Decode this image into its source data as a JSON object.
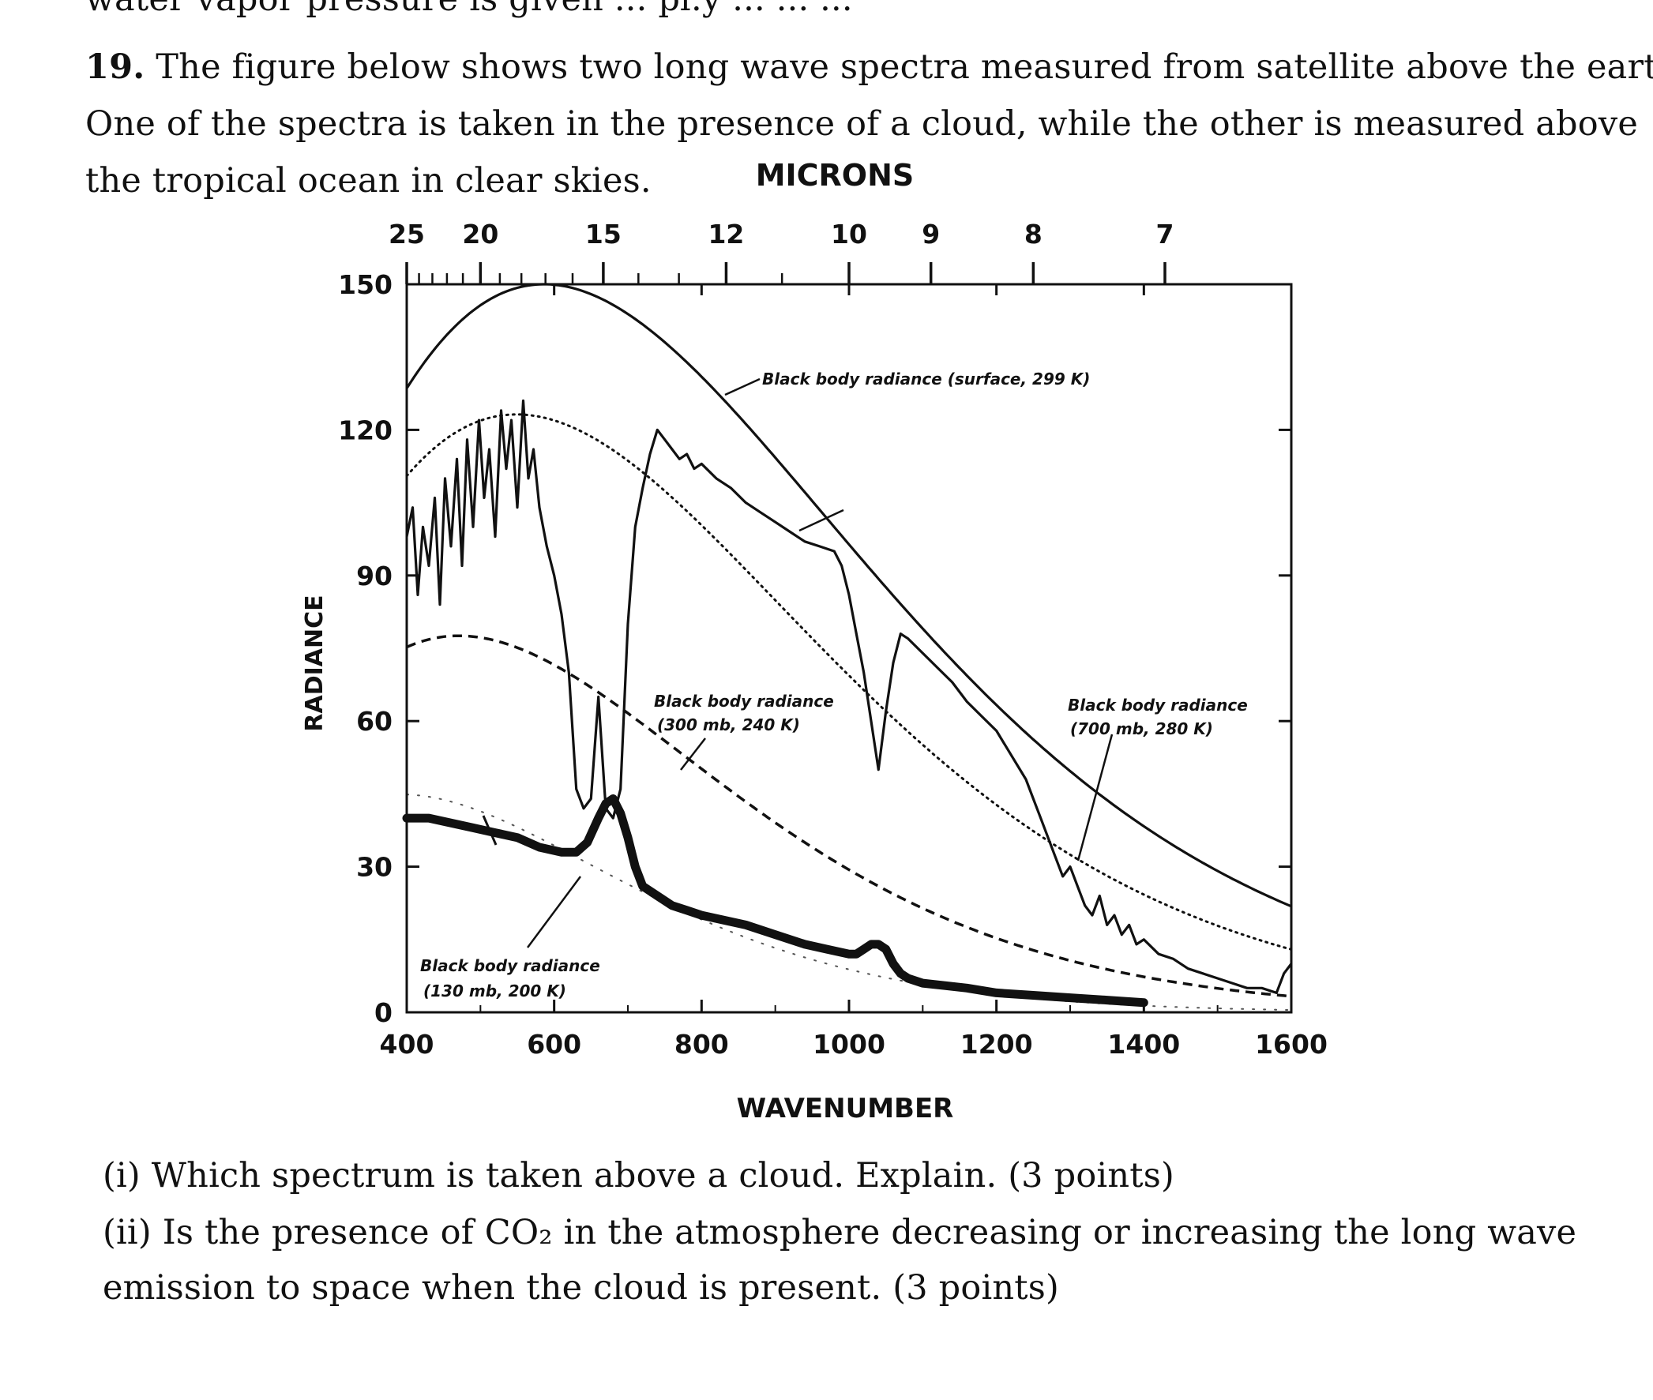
{
  "page": {
    "cut_top_text": "water vapor pressure is given ... pl.y ... ... ...",
    "question_number": "19.",
    "question_line1": "The figure below shows two long wave spectra measured from satellite above the earth.",
    "question_line2": "One of the spectra is taken in the presence of a cloud, while the other is measured above",
    "question_line3": "the tropical ocean in clear skies.",
    "sub_i": "(i) Which spectrum is taken above a cloud. Explain. (3 points)",
    "sub_ii_line1": "(ii) Is the presence of CO₂ in the atmosphere decreasing or increasing the long wave",
    "sub_ii_line2": "emission to space when the cloud is present. (3 points)"
  },
  "chart_data": {
    "type": "line",
    "xlabel": "WAVENUMBER",
    "ylabel": "RADIANCE",
    "top_axis_label": "MICRONS",
    "xlim": [
      400,
      1600
    ],
    "ylim": [
      0,
      150
    ],
    "x_ticks": [
      "400",
      "600",
      "800",
      "1000",
      "1200",
      "1400",
      "1600"
    ],
    "y_ticks": [
      "0",
      "30",
      "60",
      "90",
      "120",
      "150"
    ],
    "top_ticks": [
      {
        "label": "25",
        "micron": 25
      },
      {
        "label": "20",
        "micron": 20
      },
      {
        "label": "15",
        "micron": 15
      },
      {
        "label": "12",
        "micron": 12
      },
      {
        "label": "10",
        "micron": 10
      },
      {
        "label": "9",
        "micron": 9
      },
      {
        "label": "8",
        "micron": 8
      },
      {
        "label": "7",
        "micron": 7
      }
    ],
    "annotations": [
      {
        "text": "Black body radiance (surface, 299 K)"
      },
      {
        "text_line1": "Black body radiance",
        "text_line2": "(300 mb, 240 K)"
      },
      {
        "text_line1": "Black body radiance",
        "text_line2": "(700 mb, 280 K)"
      },
      {
        "text_line1": "Black body radiance",
        "text_line2": "(130 mb, 200 K)"
      }
    ],
    "series": [
      {
        "style": "solid-thin",
        "temperature_K": 299
      },
      {
        "style": "dotted",
        "temperature_K": 280
      },
      {
        "style": "dashed",
        "temperature_K": 240
      },
      {
        "style": "faint-dotted",
        "temperature_K": 200
      },
      {
        "style": "jagged-clear-sky",
        "x": [
          400,
          408,
          415,
          422,
          430,
          438,
          445,
          452,
          460,
          468,
          475,
          482,
          490,
          498,
          505,
          512,
          520,
          528,
          535,
          542,
          550,
          558,
          565,
          572,
          580,
          590,
          600,
          610,
          620,
          630,
          640,
          650,
          660,
          670,
          680,
          690,
          700,
          710,
          720,
          730,
          740,
          750,
          760,
          770,
          780,
          790,
          800,
          820,
          840,
          860,
          880,
          900,
          920,
          940,
          960,
          980,
          990,
          1000,
          1010,
          1020,
          1030,
          1040,
          1050,
          1060,
          1070,
          1080,
          1100,
          1120,
          1140,
          1160,
          1180,
          1200,
          1220,
          1240,
          1250,
          1260,
          1270,
          1280,
          1290,
          1300,
          1310,
          1320,
          1330,
          1340,
          1350,
          1360,
          1370,
          1380,
          1390,
          1400,
          1420,
          1440,
          1460,
          1480,
          1500,
          1520,
          1540,
          1560,
          1580,
          1590,
          1600
        ],
        "values": [
          98,
          104,
          86,
          100,
          92,
          106,
          84,
          110,
          96,
          114,
          92,
          118,
          100,
          122,
          106,
          116,
          98,
          124,
          112,
          122,
          104,
          126,
          110,
          116,
          104,
          96,
          90,
          82,
          70,
          46,
          42,
          44,
          65,
          42,
          40,
          46,
          80,
          100,
          108,
          115,
          120,
          118,
          116,
          114,
          115,
          112,
          113,
          110,
          108,
          105,
          103,
          101,
          99,
          97,
          96,
          95,
          92,
          86,
          78,
          70,
          60,
          50,
          62,
          72,
          78,
          77,
          74,
          71,
          68,
          64,
          61,
          58,
          53,
          48,
          44,
          40,
          36,
          32,
          28,
          30,
          26,
          22,
          20,
          24,
          18,
          20,
          16,
          18,
          14,
          15,
          12,
          11,
          9,
          8,
          7,
          6,
          5,
          5,
          4,
          8,
          10
        ]
      },
      {
        "style": "thick-cloudy",
        "x": [
          400,
          430,
          460,
          490,
          520,
          550,
          580,
          610,
          630,
          645,
          660,
          670,
          680,
          690,
          700,
          710,
          720,
          740,
          760,
          780,
          800,
          830,
          860,
          900,
          940,
          970,
          1000,
          1010,
          1020,
          1030,
          1040,
          1050,
          1060,
          1070,
          1080,
          1100,
          1130,
          1160,
          1200,
          1250,
          1300,
          1350,
          1400
        ],
        "values": [
          40,
          40,
          39,
          38,
          37,
          36,
          34,
          33,
          33,
          35,
          40,
          43,
          44,
          41,
          36,
          30,
          26,
          24,
          22,
          21,
          20,
          19,
          18,
          16,
          14,
          13,
          12,
          12,
          13,
          14,
          14,
          13,
          10,
          8,
          7,
          6,
          5.5,
          5,
          4,
          3.5,
          3,
          2.5,
          2
        ]
      }
    ],
    "grid": false,
    "legend": "none"
  }
}
